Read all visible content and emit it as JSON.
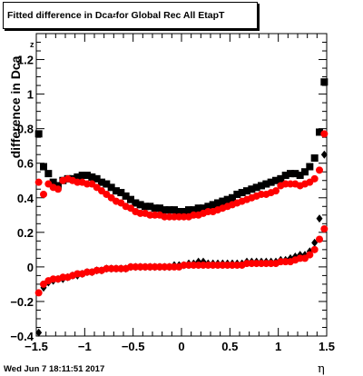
{
  "title": {
    "prefix": "Fitted difference in Dca",
    "subscript": "z",
    "suffix": " for Global Rec All EtapT"
  },
  "timestamp": "Wed Jun  7 18:11:51 2017",
  "colors": {
    "series_black": "#000000",
    "series_red": "#ff0000",
    "frame": "#000000"
  },
  "chart_data": {
    "type": "scatter",
    "xlabel": "η",
    "ylabel": "difference in Dca",
    "ylabel_subscript": "z",
    "xlim": [
      -1.5,
      1.5
    ],
    "ylim": [
      -0.4,
      1.35
    ],
    "xticks": [
      -1.5,
      -1,
      -0.5,
      0,
      0.5,
      1,
      1.5
    ],
    "xtick_labels": [
      "−1.5",
      "−1",
      "−0.5",
      "0",
      "0.5",
      "1",
      "1.5"
    ],
    "yticks": [
      -0.4,
      -0.2,
      0,
      0.2,
      0.4,
      0.6,
      0.8,
      1,
      1.2
    ],
    "ytick_labels": [
      "−0.4",
      "−0.2",
      "0",
      "0.2",
      "0.4",
      "0.6",
      "0.8",
      "1",
      "1.2"
    ],
    "grid": false,
    "legend": "none",
    "series": [
      {
        "marker": "square",
        "color": "#000000",
        "x": [
          -1.475,
          -1.425,
          -1.375,
          -1.325,
          -1.275,
          -1.225,
          -1.175,
          -1.125,
          -1.075,
          -1.025,
          -0.975,
          -0.925,
          -0.875,
          -0.825,
          -0.775,
          -0.725,
          -0.675,
          -0.625,
          -0.575,
          -0.525,
          -0.475,
          -0.425,
          -0.375,
          -0.325,
          -0.275,
          -0.225,
          -0.175,
          -0.125,
          -0.075,
          -0.025,
          0.025,
          0.075,
          0.125,
          0.175,
          0.225,
          0.275,
          0.325,
          0.375,
          0.425,
          0.475,
          0.525,
          0.575,
          0.625,
          0.675,
          0.725,
          0.775,
          0.825,
          0.875,
          0.925,
          0.975,
          1.025,
          1.075,
          1.125,
          1.175,
          1.225,
          1.275,
          1.325,
          1.375,
          1.425,
          1.475
        ],
        "y": [
          0.77,
          0.58,
          0.54,
          0.49,
          0.47,
          0.5,
          0.51,
          0.51,
          0.52,
          0.53,
          0.53,
          0.52,
          0.51,
          0.49,
          0.48,
          0.46,
          0.44,
          0.43,
          0.41,
          0.39,
          0.37,
          0.36,
          0.35,
          0.35,
          0.34,
          0.34,
          0.33,
          0.33,
          0.33,
          0.32,
          0.32,
          0.33,
          0.33,
          0.34,
          0.34,
          0.35,
          0.36,
          0.37,
          0.38,
          0.39,
          0.4,
          0.42,
          0.43,
          0.44,
          0.45,
          0.46,
          0.47,
          0.48,
          0.49,
          0.5,
          0.51,
          0.53,
          0.54,
          0.54,
          0.53,
          0.55,
          0.58,
          0.63,
          0.78,
          1.07
        ]
      },
      {
        "marker": "circle",
        "color": "#ff0000",
        "x": [
          -1.475,
          -1.425,
          -1.375,
          -1.325,
          -1.275,
          -1.225,
          -1.175,
          -1.125,
          -1.075,
          -1.025,
          -0.975,
          -0.925,
          -0.875,
          -0.825,
          -0.775,
          -0.725,
          -0.675,
          -0.625,
          -0.575,
          -0.525,
          -0.475,
          -0.425,
          -0.375,
          -0.325,
          -0.275,
          -0.225,
          -0.175,
          -0.125,
          -0.075,
          -0.025,
          0.025,
          0.075,
          0.125,
          0.175,
          0.225,
          0.275,
          0.325,
          0.375,
          0.425,
          0.475,
          0.525,
          0.575,
          0.625,
          0.675,
          0.725,
          0.775,
          0.825,
          0.875,
          0.925,
          0.975,
          1.025,
          1.075,
          1.125,
          1.175,
          1.225,
          1.275,
          1.325,
          1.375,
          1.425,
          1.475
        ],
        "y": [
          0.49,
          0.42,
          0.48,
          0.46,
          0.45,
          0.5,
          0.51,
          0.5,
          0.49,
          0.49,
          0.48,
          0.48,
          0.46,
          0.44,
          0.42,
          0.4,
          0.38,
          0.37,
          0.35,
          0.34,
          0.32,
          0.31,
          0.31,
          0.3,
          0.3,
          0.3,
          0.29,
          0.29,
          0.29,
          0.29,
          0.29,
          0.29,
          0.3,
          0.3,
          0.31,
          0.32,
          0.32,
          0.33,
          0.34,
          0.35,
          0.36,
          0.37,
          0.38,
          0.39,
          0.4,
          0.41,
          0.42,
          0.42,
          0.43,
          0.44,
          0.47,
          0.48,
          0.48,
          0.48,
          0.47,
          0.48,
          0.49,
          0.51,
          0.56,
          0.77
        ]
      },
      {
        "marker": "diamond",
        "color": "#000000",
        "x": [
          -1.475,
          -1.425,
          -1.375,
          -1.325,
          -1.275,
          -1.225,
          -1.175,
          -1.125,
          -1.075,
          -1.025,
          -0.975,
          -0.925,
          -0.875,
          -0.825,
          -0.775,
          -0.725,
          -0.675,
          -0.625,
          -0.575,
          -0.525,
          -0.475,
          -0.425,
          -0.375,
          -0.325,
          -0.275,
          -0.225,
          -0.175,
          -0.125,
          -0.075,
          -0.025,
          0.025,
          0.075,
          0.125,
          0.175,
          0.225,
          0.275,
          0.325,
          0.375,
          0.425,
          0.475,
          0.525,
          0.575,
          0.625,
          0.675,
          0.725,
          0.775,
          0.825,
          0.875,
          0.925,
          0.975,
          1.025,
          1.075,
          1.125,
          1.175,
          1.225,
          1.275,
          1.325,
          1.375,
          1.425,
          1.475
        ],
        "y": [
          -0.38,
          -0.12,
          -0.09,
          -0.08,
          -0.07,
          -0.07,
          -0.06,
          -0.05,
          -0.05,
          -0.04,
          -0.03,
          -0.03,
          -0.02,
          -0.02,
          -0.01,
          -0.01,
          -0.01,
          -0.01,
          -0.01,
          0.0,
          0.0,
          0.0,
          0.0,
          0.0,
          0.0,
          0.0,
          0.0,
          0.0,
          0.01,
          0.01,
          0.01,
          0.02,
          0.02,
          0.03,
          0.03,
          0.02,
          0.02,
          0.02,
          0.02,
          0.02,
          0.02,
          0.02,
          0.02,
          0.03,
          0.03,
          0.03,
          0.03,
          0.03,
          0.03,
          0.03,
          0.04,
          0.04,
          0.05,
          0.06,
          0.07,
          0.07,
          0.09,
          0.14,
          0.28,
          0.65
        ]
      },
      {
        "marker": "circle",
        "color": "#ff0000",
        "x": [
          -1.475,
          -1.425,
          -1.375,
          -1.325,
          -1.275,
          -1.225,
          -1.175,
          -1.125,
          -1.075,
          -1.025,
          -0.975,
          -0.925,
          -0.875,
          -0.825,
          -0.775,
          -0.725,
          -0.675,
          -0.625,
          -0.575,
          -0.525,
          -0.475,
          -0.425,
          -0.375,
          -0.325,
          -0.275,
          -0.225,
          -0.175,
          -0.125,
          -0.075,
          -0.025,
          0.025,
          0.075,
          0.125,
          0.175,
          0.225,
          0.275,
          0.325,
          0.375,
          0.425,
          0.475,
          0.525,
          0.575,
          0.625,
          0.675,
          0.725,
          0.775,
          0.825,
          0.875,
          0.925,
          0.975,
          1.025,
          1.075,
          1.125,
          1.175,
          1.225,
          1.275,
          1.325,
          1.375,
          1.425,
          1.475
        ],
        "y": [
          -0.15,
          -0.1,
          -0.08,
          -0.07,
          -0.07,
          -0.06,
          -0.06,
          -0.05,
          -0.04,
          -0.04,
          -0.03,
          -0.03,
          -0.02,
          -0.02,
          -0.01,
          -0.01,
          -0.01,
          -0.01,
          -0.01,
          0.0,
          0.0,
          0.0,
          0.0,
          0.0,
          0.0,
          0.0,
          0.0,
          0.0,
          0.0,
          0.0,
          0.01,
          0.01,
          0.01,
          0.01,
          0.01,
          0.01,
          0.01,
          0.01,
          0.01,
          0.01,
          0.01,
          0.01,
          0.01,
          0.02,
          0.02,
          0.02,
          0.02,
          0.02,
          0.02,
          0.02,
          0.03,
          0.03,
          0.03,
          0.04,
          0.05,
          0.05,
          0.07,
          0.1,
          0.16,
          0.22
        ]
      }
    ]
  }
}
